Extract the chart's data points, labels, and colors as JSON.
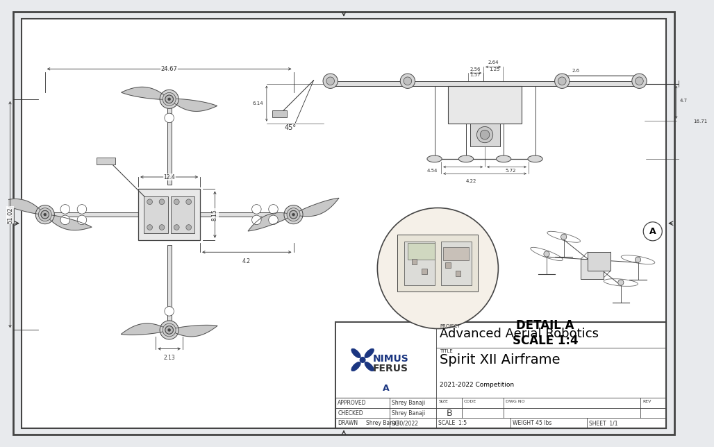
{
  "bg_color": "#e8eaed",
  "inner_bg": "#ffffff",
  "border_color": "#333333",
  "line_color": "#444444",
  "dim_color": "#333333",
  "title_block": {
    "project_name": "Advanced Aerial Robotics",
    "title_name": "Spirit XII Airframe",
    "subtitle": "2021-2022 Competition",
    "logo_text_A": "NIMUS",
    "logo_text_F": "FERUS",
    "approved_by": "Shrey Banaji",
    "checked_by": "Shrey Banaji",
    "drawn_by": "Shrey Banaji",
    "date": "9/30/2022",
    "size_val": "B",
    "scale_label": "SCALE  1:5",
    "weight_label": "WEIGHT 45 lbs",
    "sheet_label": "SHEET  1/1"
  },
  "dims": {
    "top_width": "24.67",
    "left_height": "51.02",
    "body_width": "12.4",
    "body_depth": "8.15",
    "arm_offset": "4.2",
    "bottom_dim": "2.13",
    "fv_w1": "2.64",
    "fv_w2": "2.56",
    "fv_w3": "1.57",
    "fv_w4": "1.25",
    "fv_r1": "2.6",
    "fv_r2": "4.7",
    "fv_h1": "6.14",
    "fv_h2": "4.54",
    "fv_h3": "5.72",
    "fv_h4": "4.22",
    "fv_total": "16.71",
    "angle": "45°"
  },
  "detail_label": "DETAIL A",
  "scale_detail": "SCALE 1:4",
  "detail_A": "A",
  "border_lw": 1.5,
  "dim_lw": 0.6,
  "draw_lw": 0.9
}
